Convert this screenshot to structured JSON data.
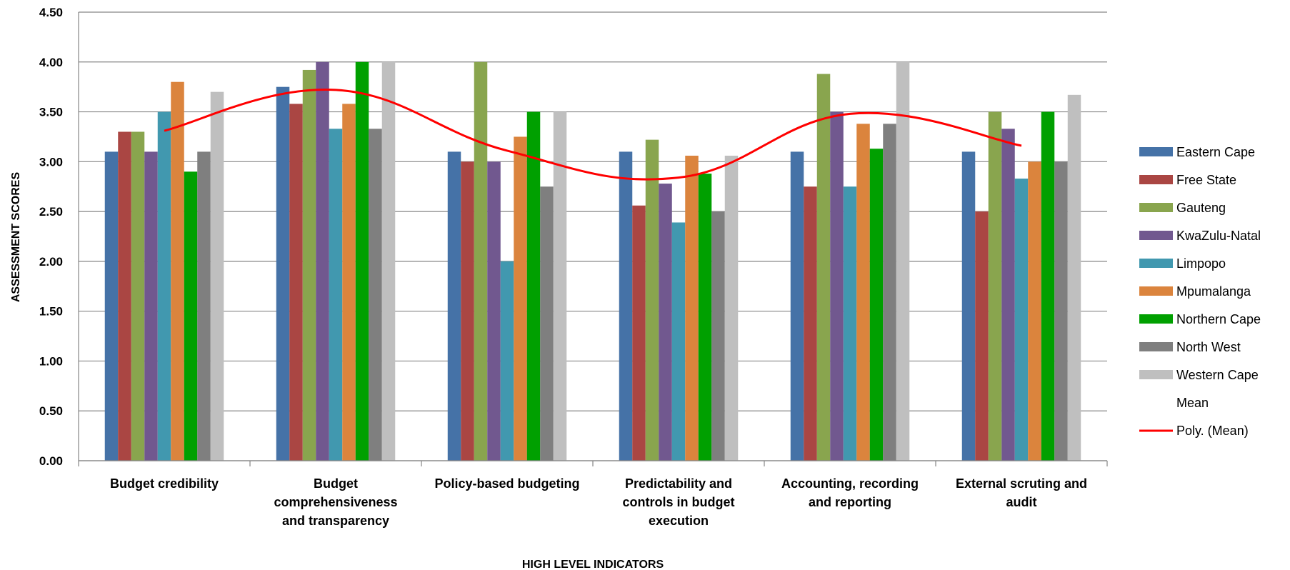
{
  "chart_data": {
    "type": "bar",
    "title": "",
    "xlabel": "HIGH LEVEL INDICATORS",
    "ylabel": "ASSESSMENT SCORES",
    "ylim": [
      0,
      4.5
    ],
    "yticks": [
      "0.00",
      "0.50",
      "1.00",
      "1.50",
      "2.00",
      "2.50",
      "3.00",
      "3.50",
      "4.00",
      "4.50"
    ],
    "grid": true,
    "legend_position": "right",
    "categories": [
      [
        "Budget credibility"
      ],
      [
        "Budget",
        "comprehensiveness",
        "and transparency"
      ],
      [
        "Policy-based budgeting"
      ],
      [
        "Predictability and",
        "controls in budget",
        "execution"
      ],
      [
        "Accounting, recording",
        "and reporting"
      ],
      [
        "External scruting and",
        "audit"
      ]
    ],
    "series": [
      {
        "name": "Eastern Cape",
        "color": "#4572A7",
        "values": [
          3.1,
          3.75,
          3.1,
          3.1,
          3.1,
          3.1
        ]
      },
      {
        "name": "Free State",
        "color": "#AA4643",
        "values": [
          3.3,
          3.58,
          3.0,
          2.56,
          2.75,
          2.5
        ]
      },
      {
        "name": "Gauteng",
        "color": "#89A54E",
        "values": [
          3.3,
          3.92,
          4.0,
          3.22,
          3.88,
          3.5
        ]
      },
      {
        "name": "KwaZulu-Natal",
        "color": "#71588F",
        "values": [
          3.1,
          4.0,
          3.0,
          2.78,
          3.5,
          3.33
        ]
      },
      {
        "name": "Limpopo",
        "color": "#4198AF",
        "values": [
          3.5,
          3.33,
          2.0,
          2.39,
          2.75,
          2.83
        ]
      },
      {
        "name": "Mpumalanga",
        "color": "#DB843D",
        "values": [
          3.8,
          3.58,
          3.25,
          3.06,
          3.38,
          3.0
        ]
      },
      {
        "name": "Northern Cape",
        "color": "#00A000",
        "values": [
          2.9,
          4.0,
          3.5,
          2.88,
          3.13,
          3.5
        ]
      },
      {
        "name": "North West",
        "color": "#7F7F7F",
        "values": [
          3.1,
          3.33,
          2.75,
          2.5,
          3.38,
          3.0
        ]
      },
      {
        "name": "Western Cape",
        "color": "#BFBFBF",
        "values": [
          3.7,
          4.0,
          3.5,
          3.06,
          4.0,
          3.67
        ]
      }
    ],
    "mean_series": {
      "name": "Mean"
    },
    "trendline": {
      "name": "Poly. (Mean)",
      "color": "#FF0000",
      "values": [
        3.31,
        3.72,
        3.11,
        2.84,
        3.48,
        3.16
      ]
    }
  }
}
